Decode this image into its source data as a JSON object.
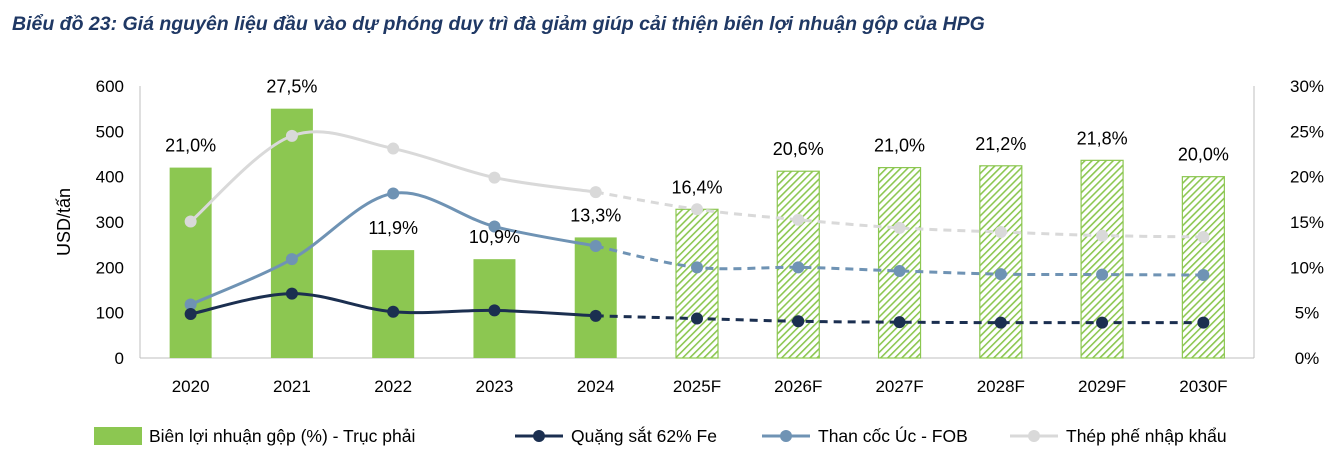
{
  "title": "Biểu đồ 23: Giá nguyên liệu đầu vào dự phóng duy trì đà giảm giúp cải thiện biên lợi nhuận gộp của HPG",
  "chart_data": {
    "type": "bar",
    "categories": [
      "2020",
      "2021",
      "2022",
      "2023",
      "2024",
      "2025F",
      "2026F",
      "2027F",
      "2028F",
      "2029F",
      "2030F"
    ],
    "forecast_start_index": 5,
    "ylabel": "USD/tấn",
    "ylim": [
      0,
      600
    ],
    "yticks": [
      "0",
      "100",
      "200",
      "300",
      "400",
      "500",
      "600"
    ],
    "y2lim": [
      0,
      30
    ],
    "y2ticks": [
      "0%",
      "5%",
      "10%",
      "15%",
      "20%",
      "25%",
      "30%"
    ],
    "grid": false,
    "legend_position": "bottom",
    "series": [
      {
        "name": "Biên lợi nhuận gộp (%) - Trục phải",
        "kind": "bar",
        "axis": "right",
        "color": "#8cc751",
        "values": [
          21.0,
          27.5,
          11.9,
          10.9,
          13.3,
          16.4,
          20.6,
          21.0,
          21.2,
          21.8,
          20.0
        ],
        "labels": [
          "21,0%",
          "27,5%",
          "11,9%",
          "10,9%",
          "13,3%",
          "16,4%",
          "20,6%",
          "21,0%",
          "21,2%",
          "21,8%",
          "20,0%"
        ]
      },
      {
        "name": "Quặng sắt 62% Fe",
        "kind": "line",
        "axis": "left",
        "color": "#1b2f50",
        "values": [
          97,
          142,
          102,
          105,
          93,
          87,
          81,
          79,
          78,
          78,
          78
        ]
      },
      {
        "name": "Than cốc Úc - FOB",
        "kind": "line",
        "axis": "left",
        "color": "#6f93b4",
        "values": [
          118,
          218,
          363,
          290,
          247,
          200,
          200,
          192,
          185,
          184,
          183
        ]
      },
      {
        "name": "Thép phế nhập khẩu",
        "kind": "line",
        "axis": "left",
        "color": "#d9d9d9",
        "values": [
          301,
          490,
          462,
          398,
          366,
          328,
          305,
          287,
          278,
          270,
          267
        ]
      }
    ]
  }
}
